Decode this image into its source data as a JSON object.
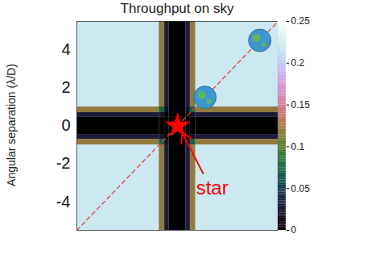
{
  "chart_data": {
    "type": "heatmap",
    "title": "Throughput on sky",
    "y_label": "Angular separation (λ/D)",
    "xlim": [
      -5.5,
      5.5
    ],
    "ylim": [
      -5.5,
      5.5
    ],
    "yticks": [
      4,
      2,
      0,
      -2,
      -4
    ],
    "tick_labels": "y",
    "x_edges": [
      -5.5,
      -1,
      -0.7,
      -0.45,
      0.45,
      0.7,
      1,
      5.5
    ],
    "y_edges": [
      -5.5,
      -1,
      -0.7,
      -0.45,
      0.45,
      0.7,
      1,
      5.5
    ],
    "cells": [
      [
        0.22,
        0.12,
        0.03,
        0,
        0.03,
        0.12,
        0.22
      ],
      [
        0.12,
        0.07,
        0.02,
        0,
        0.02,
        0.07,
        0.12
      ],
      [
        0.03,
        0.02,
        0,
        0,
        0,
        0.02,
        0.03
      ],
      [
        0,
        0,
        0,
        0,
        0,
        0,
        0
      ],
      [
        0.03,
        0.02,
        0,
        0,
        0,
        0.02,
        0.03
      ],
      [
        0.12,
        0.07,
        0.02,
        0,
        0.02,
        0.07,
        0.12
      ],
      [
        0.22,
        0.12,
        0.03,
        0,
        0.03,
        0.12,
        0.22
      ]
    ],
    "colorbar": {
      "range": [
        0,
        0.25
      ],
      "ticks": [
        0,
        0.05,
        0.1,
        0.15,
        0.2,
        0.25
      ]
    },
    "reference_line": {
      "x": [
        -5.5,
        5.5
      ],
      "y": [
        -5.5,
        5.5
      ],
      "color": "#e8413c",
      "line_style": "dashed"
    },
    "star": {
      "x": 0,
      "y": 0,
      "color": "red",
      "marker": "star"
    },
    "planets": {
      "x": [
        1.5,
        4.5
      ],
      "y": [
        1.5,
        4.5
      ]
    },
    "annotations": [
      {
        "text": "star",
        "x": 1.9,
        "y": -3.3,
        "color": "red",
        "arrow_from": [
          1.4,
          -2.5
        ],
        "arrow_to": [
          0.25,
          -0.35
        ]
      }
    ]
  }
}
